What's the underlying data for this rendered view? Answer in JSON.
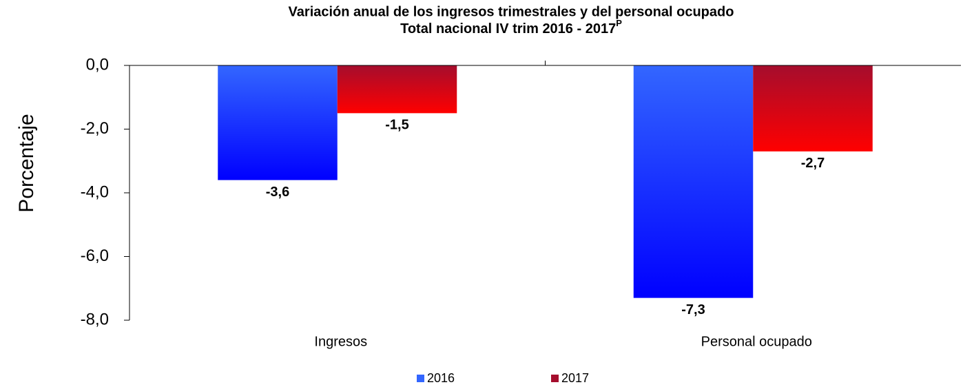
{
  "chart_data": {
    "type": "bar",
    "title": [
      "Variación anual de los ingresos trimestrales y del personal ocupado",
      "Total nacional  IV trim 2016 - 2017"
    ],
    "title_superscript": "P",
    "y_label": "Porcentaje",
    "categories": [
      "Ingresos",
      "Personal ocupado"
    ],
    "series": [
      {
        "name": "2016",
        "color": "#3366ff",
        "gradient_end": "#0000ff",
        "values": [
          -3.6,
          -7.3
        ],
        "value_labels": [
          "-3,6",
          "-7,3"
        ]
      },
      {
        "name": "2017",
        "color": "#a50d2d",
        "gradient_end": "#ff0000",
        "values": [
          -1.5,
          -2.7
        ],
        "value_labels": [
          "-1,5",
          "-2,7"
        ]
      }
    ],
    "ylim": [
      -8,
      0
    ],
    "yticks": [
      {
        "value": 0,
        "label": "0,0"
      },
      {
        "value": -2,
        "label": "-2,0"
      },
      {
        "value": -4,
        "label": "-4,0"
      },
      {
        "value": -6,
        "label": "-6,0"
      },
      {
        "value": -8,
        "label": "-8,0"
      }
    ],
    "grid": false,
    "legend": "bottom"
  }
}
